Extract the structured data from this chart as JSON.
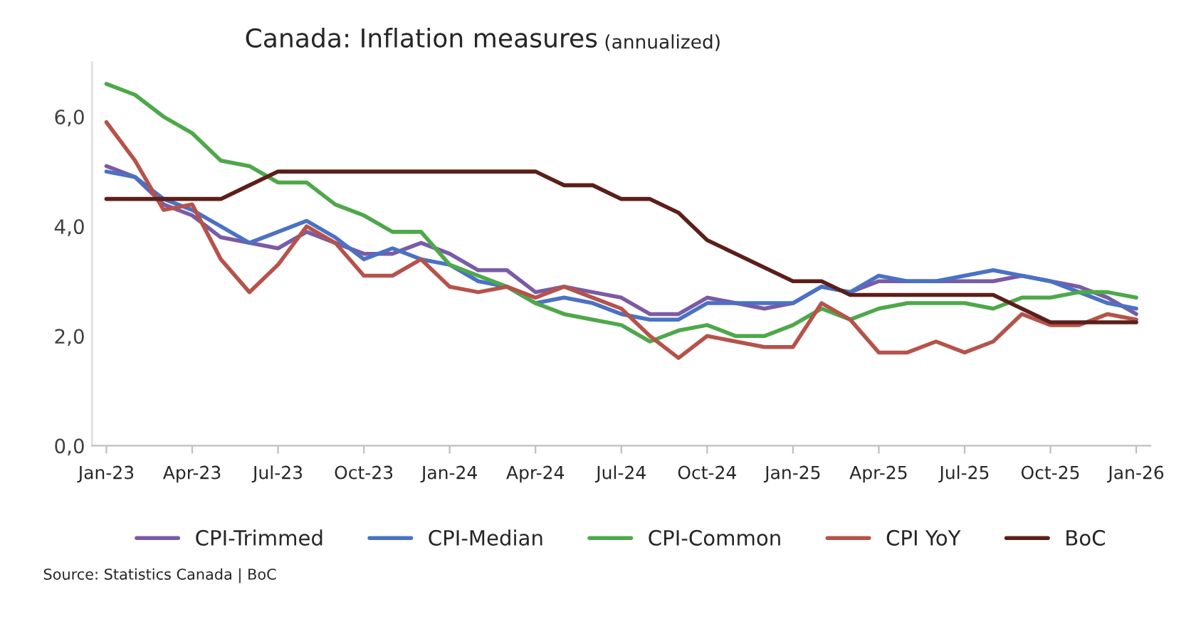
{
  "chart_data": {
    "type": "line",
    "title": "Canada: Inflation measures",
    "subtitle": "(annualized)",
    "categories": [
      "Jan-23",
      null,
      null,
      "Apr-23",
      null,
      null,
      "Jul-23",
      null,
      null,
      "Oct-23",
      null,
      null,
      "Jan-24",
      null,
      null,
      "Apr-24",
      null,
      null,
      "Jul-24",
      null,
      null,
      "Oct-24",
      null,
      null,
      "Jan-25",
      null,
      null,
      "Apr-25",
      null,
      null,
      "Jul-25",
      null,
      null,
      "Oct-25",
      null,
      null,
      "Jan-26"
    ],
    "series": [
      {
        "name": "CPI-Trimmed",
        "color": "#7a5ba6",
        "values": [
          5.1,
          4.9,
          4.4,
          4.2,
          3.8,
          3.7,
          3.6,
          3.9,
          3.7,
          3.5,
          3.5,
          3.7,
          3.5,
          3.2,
          3.2,
          2.8,
          2.9,
          2.8,
          2.7,
          2.4,
          2.4,
          2.7,
          2.6,
          2.5,
          2.6,
          2.9,
          2.8,
          3.0,
          3.0,
          3.0,
          3.0,
          3.0,
          3.1,
          3.0,
          2.9,
          2.7,
          2.4
        ]
      },
      {
        "name": "CPI-Median",
        "color": "#4a72c4",
        "values": [
          5.0,
          4.9,
          4.5,
          4.3,
          4.0,
          3.7,
          3.9,
          4.1,
          3.8,
          3.4,
          3.6,
          3.4,
          3.3,
          3.0,
          2.9,
          2.6,
          2.7,
          2.6,
          2.4,
          2.3,
          2.3,
          2.6,
          2.6,
          2.6,
          2.6,
          2.9,
          2.8,
          3.1,
          3.0,
          3.0,
          3.1,
          3.2,
          3.1,
          3.0,
          2.8,
          2.6,
          2.5
        ]
      },
      {
        "name": "CPI-Common",
        "color": "#4ea84a",
        "values": [
          6.6,
          6.4,
          6.0,
          5.7,
          5.2,
          5.1,
          4.8,
          4.8,
          4.4,
          4.2,
          3.9,
          3.9,
          3.3,
          3.1,
          2.9,
          2.6,
          2.4,
          2.3,
          2.2,
          1.9,
          2.1,
          2.2,
          2.0,
          2.0,
          2.2,
          2.5,
          2.3,
          2.5,
          2.6,
          2.6,
          2.6,
          2.5,
          2.7,
          2.7,
          2.8,
          2.8,
          2.7
        ]
      },
      {
        "name": "CPI YoY",
        "color": "#b5534a",
        "values": [
          5.9,
          5.2,
          4.3,
          4.4,
          3.4,
          2.8,
          3.3,
          4.0,
          3.7,
          3.1,
          3.1,
          3.4,
          2.9,
          2.8,
          2.9,
          2.7,
          2.9,
          2.7,
          2.5,
          2.0,
          1.6,
          2.0,
          1.9,
          1.8,
          1.8,
          2.6,
          2.3,
          1.7,
          1.7,
          1.9,
          1.7,
          1.9,
          2.4,
          2.2,
          2.2,
          2.4,
          2.3
        ]
      },
      {
        "name": "BoC",
        "color": "#5b1f1a",
        "values": [
          4.5,
          4.5,
          4.5,
          4.5,
          4.5,
          4.75,
          5.0,
          5.0,
          5.0,
          5.0,
          5.0,
          5.0,
          5.0,
          5.0,
          5.0,
          5.0,
          4.75,
          4.75,
          4.5,
          4.5,
          4.25,
          3.75,
          3.5,
          3.25,
          3.0,
          3.0,
          2.75,
          2.75,
          2.75,
          2.75,
          2.75,
          2.75,
          2.5,
          2.25,
          2.25,
          2.25,
          2.25
        ]
      }
    ],
    "ylim": [
      0,
      7
    ],
    "yticks": [
      {
        "value": 0,
        "label": "0,0"
      },
      {
        "value": 2,
        "label": "2,0"
      },
      {
        "value": 4,
        "label": "4,0"
      },
      {
        "value": 6,
        "label": "6,0"
      }
    ],
    "grid": false,
    "legend": "bottom",
    "marker": "none",
    "line_style": "solid",
    "annotations": [
      "Source: Statistics Canada | BoC"
    ]
  }
}
